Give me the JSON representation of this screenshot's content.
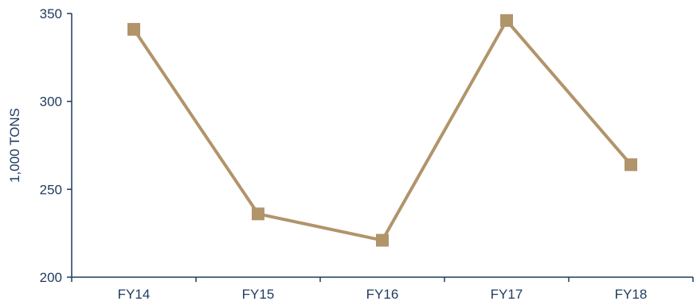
{
  "chart_data": {
    "type": "line",
    "title": "",
    "xlabel": "",
    "ylabel": "1,000 TONS",
    "categories": [
      "FY14",
      "FY15",
      "FY16",
      "FY17",
      "FY18"
    ],
    "series": [
      {
        "values": [
          341,
          236,
          221,
          346,
          264
        ]
      }
    ],
    "ylim": [
      200,
      350
    ],
    "yticks": [
      200,
      250,
      300,
      350
    ],
    "grid": false,
    "legend": "none",
    "marker": "square",
    "colors": {
      "series": "#B1946A",
      "axis": "#1f3a5f",
      "text": "#1f3a5f"
    }
  }
}
